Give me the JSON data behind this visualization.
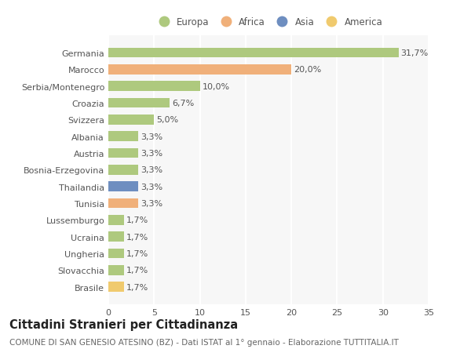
{
  "categories": [
    "Germania",
    "Marocco",
    "Serbia/Montenegro",
    "Croazia",
    "Svizzera",
    "Albania",
    "Austria",
    "Bosnia-Erzegovina",
    "Thailandia",
    "Tunisia",
    "Lussemburgo",
    "Ucraina",
    "Ungheria",
    "Slovacchia",
    "Brasile"
  ],
  "values": [
    31.7,
    20.0,
    10.0,
    6.7,
    5.0,
    3.3,
    3.3,
    3.3,
    3.3,
    3.3,
    1.7,
    1.7,
    1.7,
    1.7,
    1.7
  ],
  "labels": [
    "31,7%",
    "20,0%",
    "10,0%",
    "6,7%",
    "5,0%",
    "3,3%",
    "3,3%",
    "3,3%",
    "3,3%",
    "3,3%",
    "1,7%",
    "1,7%",
    "1,7%",
    "1,7%",
    "1,7%"
  ],
  "bar_colors": [
    "#aec97e",
    "#f0b07a",
    "#aec97e",
    "#aec97e",
    "#aec97e",
    "#aec97e",
    "#aec97e",
    "#aec97e",
    "#6e8ec0",
    "#f0b07a",
    "#aec97e",
    "#aec97e",
    "#aec97e",
    "#aec97e",
    "#f0ca6e"
  ],
  "legend_labels": [
    "Europa",
    "Africa",
    "Asia",
    "America"
  ],
  "legend_colors": [
    "#aec97e",
    "#f0b07a",
    "#6e8ec0",
    "#f0ca6e"
  ],
  "xlim": [
    0,
    35
  ],
  "xticks": [
    0,
    5,
    10,
    15,
    20,
    25,
    30,
    35
  ],
  "title": "Cittadini Stranieri per Cittadinanza",
  "subtitle": "COMUNE DI SAN GENESIO ATESINO (BZ) - Dati ISTAT al 1° gennaio - Elaborazione TUTTITALIA.IT",
  "background_color": "#ffffff",
  "plot_bg_color": "#f7f7f7",
  "grid_color": "#ffffff",
  "text_color": "#555555",
  "label_fontsize": 8,
  "tick_fontsize": 8,
  "title_fontsize": 10.5,
  "subtitle_fontsize": 7.5,
  "bar_height": 0.6
}
